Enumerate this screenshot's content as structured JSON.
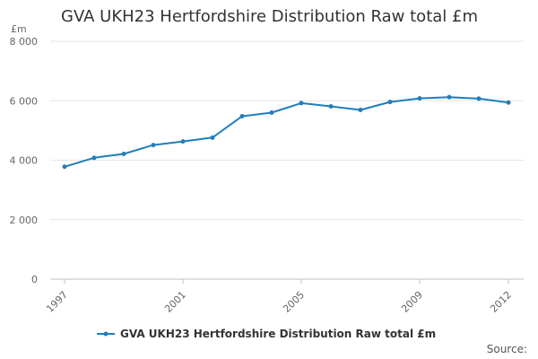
{
  "chart_data": {
    "type": "line",
    "title": "GVA UKH23 Hertfordshire Distribution Raw total £m",
    "y_unit": "£m",
    "x": [
      1997,
      1998,
      1999,
      2000,
      2001,
      2002,
      2003,
      2004,
      2005,
      2006,
      2007,
      2008,
      2009,
      2010,
      2011,
      2012
    ],
    "x_tick_labels": [
      "1997",
      "2001",
      "2005",
      "2009",
      "2012"
    ],
    "y_tick_labels": [
      "0",
      "2 000",
      "4 000",
      "6 000",
      "8 000"
    ],
    "ylim": [
      0,
      8000
    ],
    "grid": true,
    "legend_position": "bottom",
    "series": [
      {
        "name": "GVA UKH23 Hertfordshire Distribution Raw total £m",
        "color": "#1f7fba",
        "values": [
          3780,
          4080,
          4210,
          4510,
          4630,
          4760,
          5480,
          5600,
          5920,
          5810,
          5690,
          5960,
          6080,
          6120,
          6070,
          5940
        ]
      }
    ],
    "source": "Source:"
  }
}
